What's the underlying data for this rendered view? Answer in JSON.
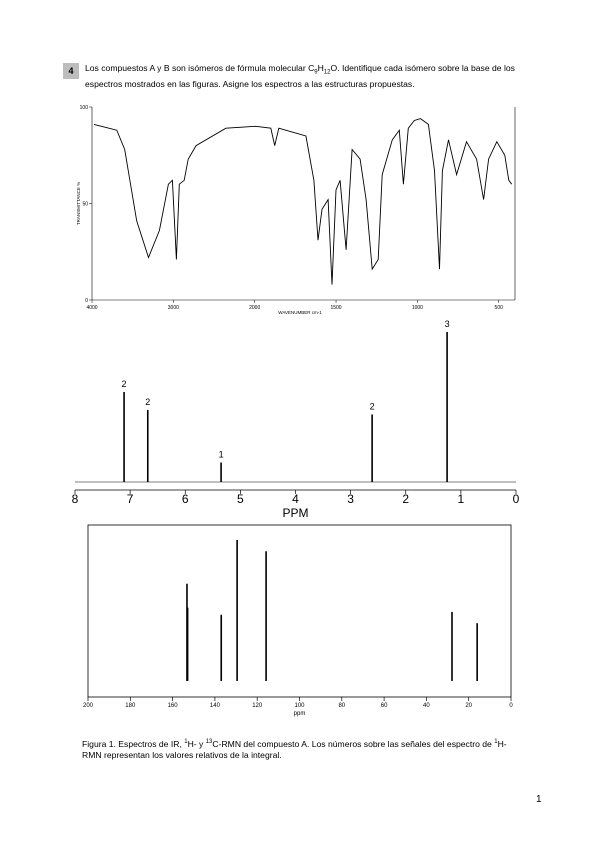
{
  "problem": {
    "number": "4",
    "text": [
      "Los compuestos A y B son isómeros de fórmula molecular C",
      "9",
      "H",
      "12",
      "O. Identifique cada isómero sobre la base de los espectros mostrados en las figuras. Asigne los espectros a las estructuras propuestas."
    ]
  },
  "figures": {
    "ir": {
      "type": "line",
      "x_label": "WAVENUMBER cm-1",
      "y_label": "TRANSMITTANCE %",
      "xlim": [
        4000,
        400
      ],
      "xticks": [
        4000,
        3000,
        2000,
        1500,
        1000,
        500
      ],
      "ylim": [
        0,
        100
      ],
      "yticks": [
        0,
        50,
        100
      ],
      "x": [
        3976,
        3695,
        3598,
        3451,
        3305,
        3171,
        3061,
        3012,
        2963,
        2927,
        2866,
        2817,
        2720,
        2354,
        1994,
        1901,
        1877,
        1852,
        1685,
        1636,
        1611,
        1586,
        1549,
        1525,
        1500,
        1475,
        1438,
        1401,
        1352,
        1315,
        1278,
        1241,
        1216,
        1154,
        1111,
        1086,
        1056,
        1019,
        981,
        932,
        895,
        864,
        846,
        809,
        759,
        698,
        636,
        593,
        562,
        512,
        463,
        438,
        420
      ],
      "values": [
        91,
        88,
        78,
        41,
        22,
        36,
        60,
        62,
        21,
        60,
        62,
        73,
        80,
        89,
        90,
        89,
        80,
        89,
        85,
        62,
        31,
        47,
        52,
        8,
        57,
        62,
        26,
        78,
        73,
        52,
        16,
        21,
        65,
        83,
        88,
        60,
        89,
        93,
        94,
        91,
        67,
        16,
        67,
        83,
        65,
        82,
        73,
        52,
        73,
        82,
        75,
        62,
        60
      ],
      "color": "#000000"
    },
    "h_nmr": {
      "type": "spectrum",
      "x_label": "PPM",
      "xlim": [
        8,
        0
      ],
      "xticks": [
        8,
        7,
        6,
        5,
        4,
        3,
        2,
        1,
        0
      ],
      "x": [
        7.11,
        6.68,
        5.35,
        2.61,
        1.25
      ],
      "values": [
        60,
        48,
        13,
        45,
        100
      ],
      "integrals": [
        2,
        2,
        1,
        2,
        3
      ],
      "color": "#000000"
    },
    "c_nmr": {
      "type": "spectrum",
      "x_label": "ppm",
      "xlim": [
        200,
        0
      ],
      "xticks": [
        200,
        180,
        160,
        140,
        120,
        100,
        80,
        60,
        40,
        20,
        0
      ],
      "x": [
        153.2,
        152.9,
        137.0,
        129.5,
        115.8,
        27.9,
        16.0
      ],
      "values": [
        69,
        52,
        47,
        100,
        92,
        49,
        41
      ],
      "color": "#000000"
    }
  },
  "caption": [
    "Figura 1. Espectros de IR, ",
    "1",
    "H- y ",
    "13",
    "C-RMN del compuesto A. Los números sobre las señales del espectro de ",
    "1",
    "H-RMN representan los valores relativos de la integral."
  ],
  "page_number": "1"
}
